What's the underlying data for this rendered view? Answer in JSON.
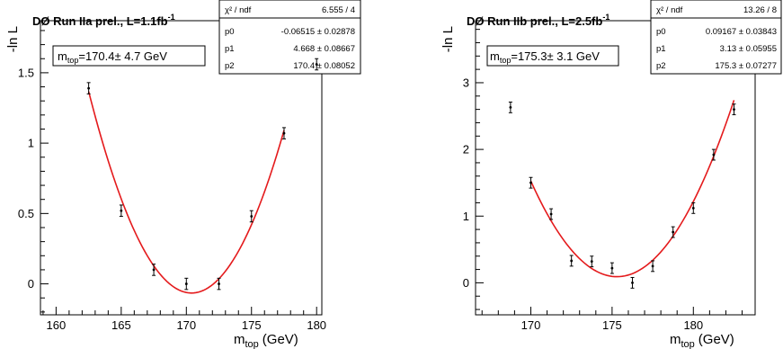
{
  "chart_data": [
    {
      "type": "scatter",
      "title": "DØ Run IIa prel., L=1.1fb",
      "title_sup": "-1",
      "xlabel": "m",
      "xlabel_sub": "top",
      "xlabel_unit": "(GeV)",
      "ylabel": "-ln L",
      "xlim": [
        158.8,
        180.4
      ],
      "ylim": [
        -0.22,
        1.87
      ],
      "xticks": [
        "160",
        "165",
        "170",
        "175",
        "180"
      ],
      "yticks": [
        "0",
        "0.5",
        "1",
        "1.5"
      ],
      "points": [
        {
          "x": 162.5,
          "y": 1.39,
          "err": 0.04
        },
        {
          "x": 165.0,
          "y": 0.52,
          "err": 0.04
        },
        {
          "x": 167.5,
          "y": 0.1,
          "err": 0.04
        },
        {
          "x": 170.0,
          "y": 0.0,
          "err": 0.04
        },
        {
          "x": 172.5,
          "y": 0.0,
          "err": 0.04
        },
        {
          "x": 175.0,
          "y": 0.48,
          "err": 0.04
        },
        {
          "x": 177.5,
          "y": 1.07,
          "err": 0.04
        },
        {
          "x": 180.0,
          "y": 1.56,
          "err": 0.04
        }
      ],
      "fit": {
        "p0": -0.06515,
        "p1": 4.668,
        "p2": 170.4,
        "x_range": [
          162.5,
          177.5
        ],
        "color": "#e41a1c"
      },
      "result": {
        "pre": "m",
        "sub": "top",
        "post": "=170.4± 4.7 GeV"
      },
      "stats": {
        "header": "χ² / ndf",
        "header_value": "6.555 / 4",
        "rows": [
          {
            "name": "p0",
            "value": "-0.06515 ± 0.02878"
          },
          {
            "name": "p1",
            "value": "4.668 ± 0.08667"
          },
          {
            "name": "p2",
            "value": "170.4 ± 0.08052"
          }
        ]
      }
    },
    {
      "type": "scatter",
      "title": "DØ Run IIb prel., L=2.5fb",
      "title_sup": "-1",
      "xlabel": "m",
      "xlabel_sub": "top",
      "xlabel_unit": "(GeV)",
      "ylabel": "-ln L",
      "xlim": [
        166.6,
        183.8
      ],
      "ylim": [
        -0.48,
        3.93
      ],
      "xticks": [
        "170",
        "175",
        "180"
      ],
      "yticks": [
        "0",
        "1",
        "2",
        "3"
      ],
      "points": [
        {
          "x": 168.75,
          "y": 2.63,
          "err": 0.08
        },
        {
          "x": 170.0,
          "y": 1.5,
          "err": 0.08
        },
        {
          "x": 171.25,
          "y": 1.03,
          "err": 0.08
        },
        {
          "x": 172.5,
          "y": 0.33,
          "err": 0.08
        },
        {
          "x": 173.75,
          "y": 0.32,
          "err": 0.08
        },
        {
          "x": 175.0,
          "y": 0.22,
          "err": 0.08
        },
        {
          "x": 176.25,
          "y": 0.0,
          "err": 0.08
        },
        {
          "x": 177.5,
          "y": 0.25,
          "err": 0.08
        },
        {
          "x": 178.75,
          "y": 0.76,
          "err": 0.08
        },
        {
          "x": 180.0,
          "y": 1.12,
          "err": 0.08
        },
        {
          "x": 181.25,
          "y": 1.92,
          "err": 0.08
        },
        {
          "x": 182.5,
          "y": 2.6,
          "err": 0.08
        }
      ],
      "fit": {
        "p0": 0.09167,
        "p1": 3.13,
        "p2": 175.3,
        "x_range": [
          170.0,
          182.5
        ],
        "color": "#e41a1c"
      },
      "result": {
        "pre": "m",
        "sub": "top",
        "post": "=175.3± 3.1 GeV"
      },
      "stats": {
        "header": "χ² / ndf",
        "header_value": "13.26 / 8",
        "rows": [
          {
            "name": "p0",
            "value": "0.09167 ± 0.03843"
          },
          {
            "name": "p1",
            "value": "3.13 ± 0.05955"
          },
          {
            "name": "p2",
            "value": "175.3 ± 0.07277"
          }
        ]
      }
    }
  ]
}
